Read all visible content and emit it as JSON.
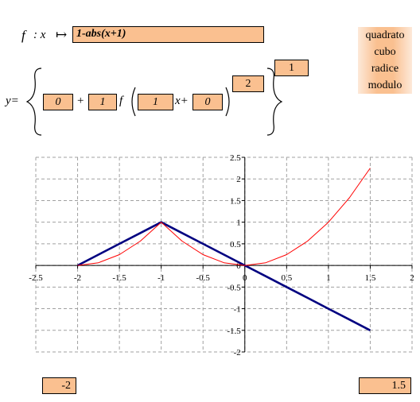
{
  "header": {
    "f_label": "f",
    "colon_x": ": x",
    "maps_to": "↦",
    "function_expr": "1-abs(x+1)"
  },
  "menu": {
    "items": [
      "quadrato",
      "cubo",
      "radice",
      "modulo"
    ]
  },
  "equation": {
    "y_label": "y=",
    "vertical_shift": "0",
    "plus1": "+",
    "amplitude": "1",
    "f_symbol": "f",
    "horizontal_scale": "1",
    "x_plus": "x+",
    "horizontal_shift": "0",
    "inner_power": "2",
    "outer_power": "1"
  },
  "range": {
    "x_min": "-2",
    "x_max": "1.5"
  },
  "colors": {
    "cell_fill": "#fac090",
    "base_curve": "#000080",
    "transformed_curve": "#ff0000",
    "grid": "#a0a0a0"
  },
  "chart_data": {
    "type": "line",
    "xlim": [
      -2.5,
      2
    ],
    "ylim": [
      -2,
      2.5
    ],
    "x_ticks": [
      "-2.5",
      "-2",
      "-1.5",
      "-1",
      "-0.5",
      "0",
      "0.5",
      "1",
      "1.5",
      "2"
    ],
    "y_ticks": [
      "2.5",
      "2",
      "1.5",
      "1",
      "0.5",
      "0",
      "-0.5",
      "-1",
      "-1.5",
      "-2"
    ],
    "grid": true,
    "series": [
      {
        "color": "#000080",
        "x": [
          -2,
          -1.75,
          -1.5,
          -1.25,
          -1,
          -0.75,
          -0.5,
          -0.25,
          0,
          0.25,
          0.5,
          0.75,
          1,
          1.25,
          1.5
        ],
        "y": [
          0,
          0.25,
          0.5,
          0.75,
          1,
          0.75,
          0.5,
          0.25,
          0,
          -0.25,
          -0.5,
          -0.75,
          -1,
          -1.25,
          -1.5
        ]
      },
      {
        "color": "#ff0000",
        "x": [
          -2,
          -1.75,
          -1.5,
          -1.25,
          -1,
          -0.75,
          -0.5,
          -0.25,
          0,
          0.25,
          0.5,
          0.75,
          1,
          1.25,
          1.5
        ],
        "y": [
          0,
          0.0625,
          0.25,
          0.5625,
          1,
          0.5625,
          0.25,
          0.0625,
          0,
          0.0625,
          0.25,
          0.5625,
          1,
          1.5625,
          2.25
        ]
      }
    ]
  }
}
